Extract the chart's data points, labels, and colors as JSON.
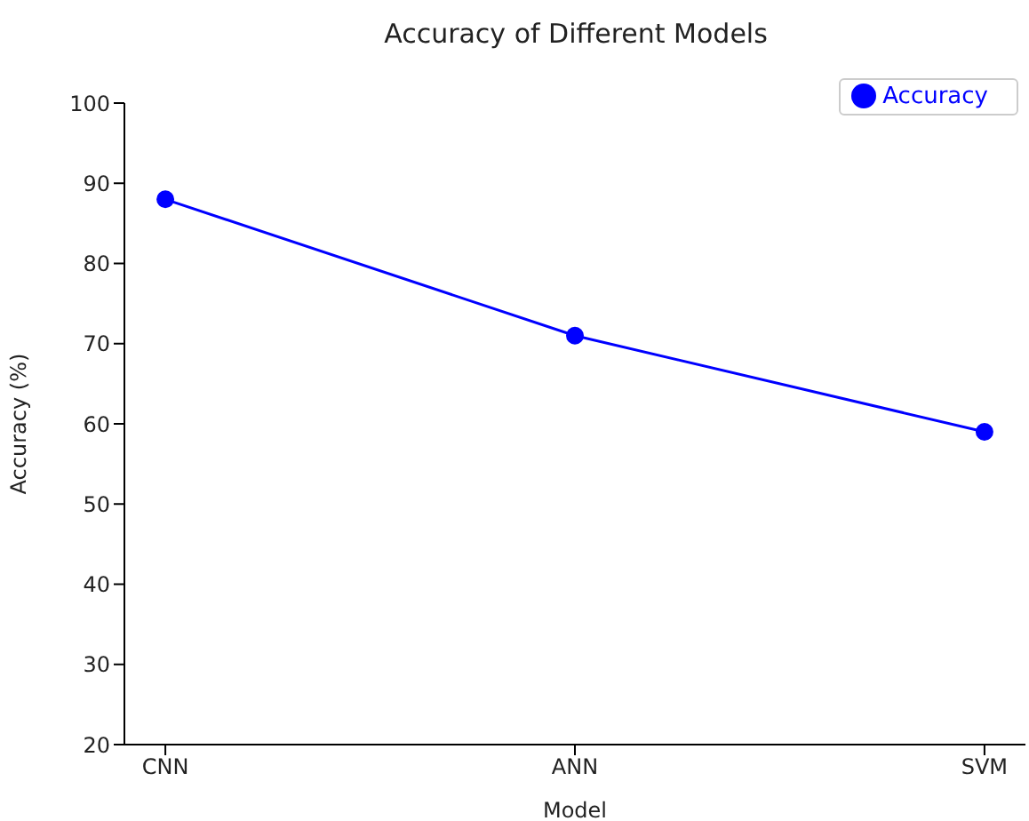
{
  "chart_data": {
    "type": "line",
    "title": "Accuracy of Different Models",
    "xlabel": "Model",
    "ylabel": "Accuracy (%)",
    "categories": [
      "CNN",
      "ANN",
      "SVM"
    ],
    "series": [
      {
        "name": "Accuracy",
        "color": "#0000ff",
        "values": [
          88,
          71,
          59
        ]
      }
    ],
    "ylim": [
      20,
      100
    ],
    "yticks": [
      20,
      30,
      40,
      50,
      60,
      70,
      80,
      90,
      100
    ],
    "legend": "top right",
    "marker": "circle",
    "line_style": "solid",
    "grid": false
  }
}
